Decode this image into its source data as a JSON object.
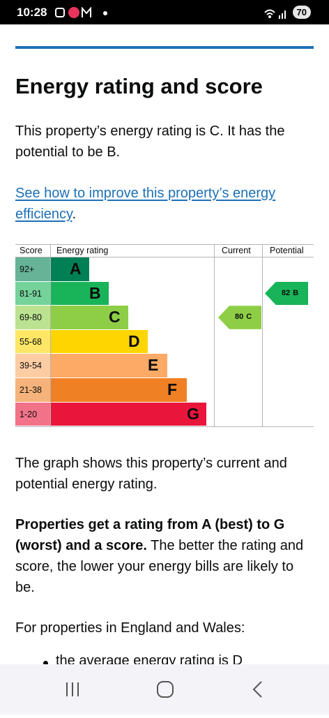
{
  "status_bar": {
    "time": "10:28",
    "battery": "70"
  },
  "title": "Energy rating and score",
  "intro": "This property’s energy rating is C. It has the potential to be B.",
  "link": {
    "text": "See how to improve this property’s energy efficiency",
    "suffix": "."
  },
  "chart": {
    "headers": {
      "score": "Score",
      "rating": "Energy rating",
      "current": "Current",
      "potential": "Potential"
    },
    "rows": [
      {
        "score": "92+",
        "band": "A",
        "color": "#008054",
        "tint": "#66b398"
      },
      {
        "score": "81-91",
        "band": "B",
        "color": "#19b459",
        "tint": "#75d29b"
      },
      {
        "score": "69-80",
        "band": "C",
        "color": "#8dce46",
        "tint": "#bbe290"
      },
      {
        "score": "55-68",
        "band": "D",
        "color": "#ffd500",
        "tint": "#ffe666"
      },
      {
        "score": "39-54",
        "band": "E",
        "color": "#fcaa65",
        "tint": "#fdcca3"
      },
      {
        "score": "21-38",
        "band": "F",
        "color": "#ef8023",
        "tint": "#f5b37b"
      },
      {
        "score": "1-20",
        "band": "G",
        "color": "#e9153b",
        "tint": "#f27389"
      }
    ],
    "current": {
      "score": "80",
      "band": "C"
    },
    "potential": {
      "score": "82",
      "band": "B"
    }
  },
  "paragraph_1": "The graph shows this property’s current and potential energy rating.",
  "paragraph_2": {
    "bold": "Properties get a rating from A (best) to G (worst) and a score.",
    "rest": " The better the rating and score, the lower your energy bills are likely to be."
  },
  "paragraph_3": "For properties in England and Wales:",
  "bullet": "the average energy rating is D"
}
